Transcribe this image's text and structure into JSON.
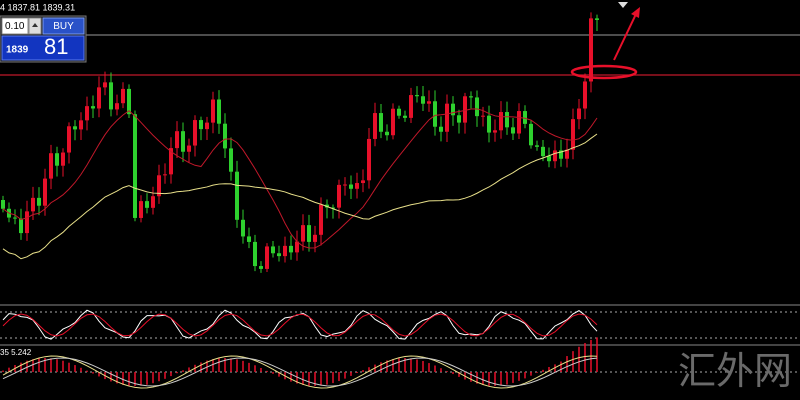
{
  "header": {
    "quote": "4 1837.81 1839.31"
  },
  "trade_panel": {
    "lot": "0.10",
    "button": "BUY",
    "price_prefix": "1839",
    "price_suffix": "81"
  },
  "macd_label": "35 5.242",
  "watermark": "汇外网"
}
